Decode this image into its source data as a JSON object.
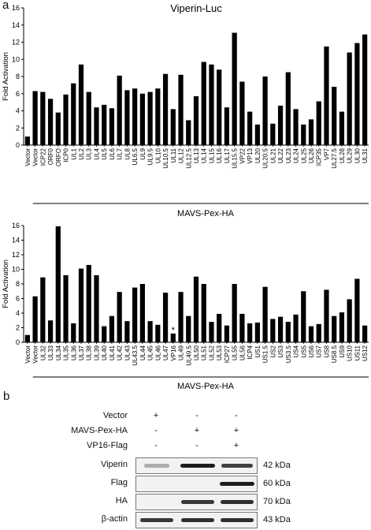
{
  "panel_a_letter": "a",
  "panel_b_letter": "b",
  "chart_data": [
    {
      "type": "bar",
      "title": "Viperin-Luc",
      "ylabel": "Fold Activation",
      "xlabel": "MAVS-Pex-HA",
      "ylim": [
        0,
        16
      ],
      "yticks": [
        0,
        2,
        4,
        6,
        8,
        10,
        12,
        14,
        16
      ],
      "categories": [
        "Vector",
        "Vector",
        "ICP22",
        "ORF0",
        "ORFO",
        "ICP0",
        "UL1",
        "UL2",
        "UL3",
        "UL4",
        "UL5",
        "UL6",
        "UL7",
        "UL8",
        "UL6.5",
        "UL9",
        "UL9.5",
        "UL10",
        "UL10.5",
        "UL11",
        "UL12",
        "UL12.5",
        "UL13",
        "UL14",
        "UL15",
        "UL16",
        "UL17",
        "UL15.5",
        "VP22",
        "VP13",
        "UL20",
        "UL20.5",
        "UL21",
        "UL22",
        "UL23",
        "UL24",
        "UL25",
        "UL26",
        "ICP35",
        "VP7",
        "UL27.5",
        "UL28",
        "UL29",
        "UL30",
        "UL31"
      ],
      "values": [
        1.0,
        6.3,
        6.2,
        5.4,
        3.8,
        5.9,
        7.2,
        9.4,
        6.2,
        4.4,
        4.7,
        4.3,
        8.1,
        6.4,
        6.6,
        6.0,
        6.2,
        6.6,
        8.3,
        4.2,
        8.2,
        2.9,
        5.7,
        9.7,
        9.4,
        8.8,
        4.4,
        13.1,
        7.4,
        3.9,
        2.4,
        8.0,
        2.5,
        4.6,
        8.5,
        4.2,
        2.4,
        3.0,
        5.1,
        11.5,
        6.8,
        3.9,
        10.8,
        11.9,
        12.9
      ],
      "x_underline": true
    },
    {
      "type": "bar",
      "title": "",
      "ylabel": "Fold Activation",
      "xlabel": "MAVS-Pex-HA",
      "ylim": [
        0,
        16
      ],
      "yticks": [
        0,
        2,
        4,
        6,
        8,
        10,
        12,
        14,
        16
      ],
      "categories": [
        "Vector",
        "Vector",
        "UL32",
        "UL33",
        "UL34",
        "UL35",
        "UL36",
        "UL37",
        "UL38",
        "UL39",
        "UL40",
        "UL41",
        "UL42",
        "UL43",
        "UL43.5",
        "UL44",
        "UL45",
        "UL46",
        "UL47",
        "VP16",
        "UL49",
        "UL49.5",
        "UL50",
        "UL51",
        "UL52",
        "UL53",
        "ICP27",
        "UL55",
        "UL56",
        "ICP4",
        "US1",
        "US1.5",
        "US2",
        "US3",
        "US3.5",
        "US4",
        "US5",
        "US6",
        "US7",
        "US8",
        "US8.5",
        "US9",
        "US10",
        "US11",
        "US12"
      ],
      "values": [
        1.0,
        6.3,
        8.9,
        3.0,
        15.9,
        9.2,
        2.6,
        10.1,
        10.6,
        9.2,
        2.2,
        3.6,
        6.9,
        2.9,
        7.5,
        8.0,
        2.9,
        2.4,
        6.8,
        1.2,
        6.9,
        3.6,
        9.0,
        8.0,
        2.8,
        3.9,
        2.3,
        8.0,
        3.9,
        2.6,
        2.7,
        7.6,
        3.2,
        3.5,
        2.8,
        3.8,
        7.0,
        2.2,
        2.5,
        7.2,
        3.6,
        4.1,
        5.9,
        8.7,
        2.3
      ],
      "annotations": [
        {
          "category": "VP16",
          "text": "*"
        }
      ],
      "x_underline": true
    }
  ],
  "blot": {
    "conditions": [
      {
        "name": "Vector",
        "signs": [
          "+",
          "-",
          "-"
        ]
      },
      {
        "name": "MAVS-Pex-HA",
        "signs": [
          "-",
          "+",
          "+"
        ]
      },
      {
        "name": "VP16-Flag",
        "signs": [
          "-",
          "-",
          "+"
        ]
      }
    ],
    "rows": [
      {
        "name": "Viperin",
        "kda": "42 kDa",
        "bands": [
          0.15,
          0.95,
          0.75
        ]
      },
      {
        "name": "Flag",
        "kda": "60 kDa",
        "bands": [
          0.0,
          0.0,
          0.95
        ]
      },
      {
        "name": "HA",
        "kda": "70 kDa",
        "bands": [
          0.0,
          0.8,
          0.85
        ]
      },
      {
        "name": "β-actin",
        "kda": "43 kDa",
        "bands": [
          0.8,
          0.85,
          0.85
        ]
      }
    ]
  }
}
